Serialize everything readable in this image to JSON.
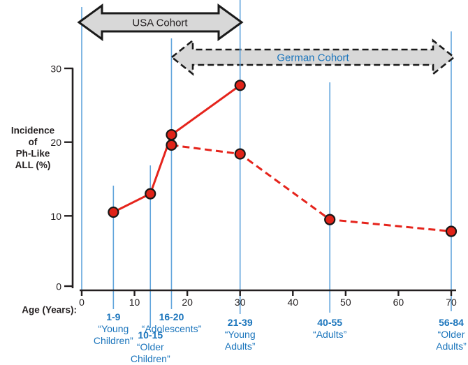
{
  "figure": {
    "description": "Incidence of Ph-Like ALL (%) by age with USA and German cohorts",
    "background": "#ffffff"
  },
  "colors": {
    "text_dark": "#231f20",
    "label_blue": "#1b75bc",
    "guide_blue": "#62a5dc",
    "series_red": "#e5241c",
    "marker_fill": "#e02318",
    "marker_stroke": "#161616",
    "arrow_fill": "#d8d8d8",
    "arrow_stroke": "#1a1a1a"
  },
  "chart_data": {
    "type": "line",
    "title": "",
    "xlabel": "Age (Years):",
    "ylabel_lines": [
      "Incidence",
      "of",
      "Ph-Like",
      "ALL (%)"
    ],
    "x_ticks": [
      0,
      10,
      20,
      30,
      40,
      50,
      60,
      70
    ],
    "y_ticks": [
      0,
      10,
      20,
      30
    ],
    "xlim": [
      0,
      71
    ],
    "ylim": [
      0,
      30
    ],
    "grid": "off",
    "legend_position": "none",
    "series": [
      {
        "name": "USA Cohort",
        "line": "solid",
        "color": "#e5241c",
        "x": [
          6,
          13,
          17,
          30
        ],
        "y": [
          10.5,
          13.0,
          21.0,
          27.7
        ]
      },
      {
        "name": "German Cohort",
        "line": "dashed",
        "color": "#e5241c",
        "x": [
          17,
          30,
          47,
          70
        ],
        "y": [
          19.6,
          18.4,
          9.5,
          7.9
        ]
      }
    ],
    "cohort_arrows": [
      {
        "label": "USA Cohort",
        "outline": "solid",
        "age_span": [
          0,
          30
        ]
      },
      {
        "label": "German Cohort",
        "outline": "dashed",
        "age_span": [
          17,
          70
        ]
      }
    ],
    "age_groups": [
      {
        "range": "1-9",
        "name_lines": [
          "“Young",
          "Children”"
        ],
        "center_age": 6
      },
      {
        "range": "10-15",
        "name_lines": [
          "“Older",
          "Children”"
        ],
        "center_age": 13
      },
      {
        "range": "16-20",
        "name_lines": [
          "“Adolescents”"
        ],
        "center_age": 17
      },
      {
        "range": "21-39",
        "name_lines": [
          "“Young",
          "Adults”"
        ],
        "center_age": 30
      },
      {
        "range": "40-55",
        "name_lines": [
          "“Adults”"
        ],
        "center_age": 47
      },
      {
        "range": "56-84",
        "name_lines": [
          "“Older",
          "Adults”"
        ],
        "center_age": 70
      }
    ]
  }
}
